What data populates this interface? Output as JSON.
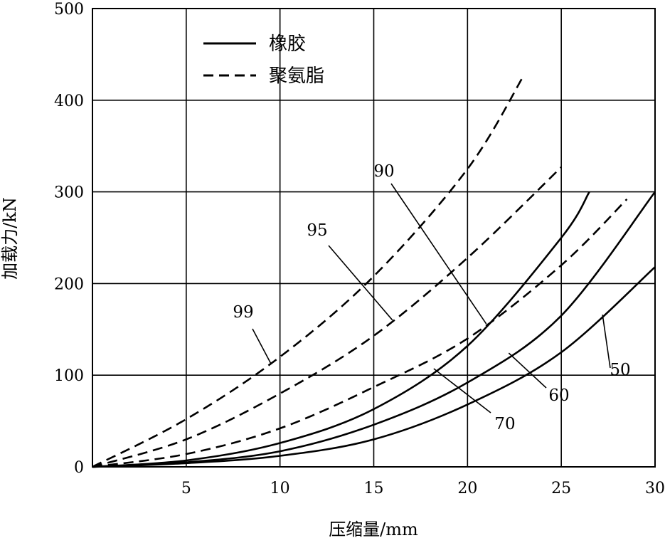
{
  "chart_data": {
    "type": "line",
    "title": "",
    "xlabel": "压缩量/mm",
    "ylabel": "加载力/kN",
    "xlim": [
      0,
      30
    ],
    "ylim": [
      0,
      500
    ],
    "x_ticks": [
      5,
      10,
      15,
      20,
      25,
      30
    ],
    "y_ticks": [
      0,
      100,
      200,
      300,
      400,
      500
    ],
    "grid": true,
    "legend": [
      {
        "label": "橡胶",
        "style": "solid"
      },
      {
        "label": "聚氨脂",
        "style": "dashed"
      }
    ],
    "series": [
      {
        "name": "50",
        "material": "橡胶",
        "style": "solid",
        "x": [
          0,
          5,
          10,
          15,
          20,
          25,
          30
        ],
        "y": [
          0,
          4,
          12,
          30,
          68,
          125,
          218
        ]
      },
      {
        "name": "60",
        "material": "橡胶",
        "style": "solid",
        "x": [
          0,
          5,
          10,
          15,
          20,
          25,
          30
        ],
        "y": [
          0,
          5,
          17,
          46,
          92,
          165,
          300
        ]
      },
      {
        "name": "70",
        "material": "橡胶",
        "style": "solid",
        "x": [
          0,
          5,
          10,
          15,
          20,
          25,
          26.5
        ],
        "y": [
          0,
          7,
          26,
          63,
          132,
          250,
          300
        ]
      },
      {
        "name": "90",
        "material": "聚氨脂",
        "style": "dashed",
        "x": [
          0,
          5,
          10,
          15,
          20,
          25,
          28.5
        ],
        "y": [
          0,
          14,
          42,
          87,
          140,
          220,
          292
        ]
      },
      {
        "name": "95",
        "material": "聚氨脂",
        "style": "dashed",
        "x": [
          0,
          5,
          10,
          15,
          20,
          25
        ],
        "y": [
          0,
          30,
          80,
          143,
          228,
          327
        ]
      },
      {
        "name": "99",
        "material": "聚氨脂",
        "style": "dashed",
        "x": [
          0,
          5,
          10,
          15,
          20,
          23
        ],
        "y": [
          0,
          52,
          120,
          208,
          325,
          427
        ]
      }
    ],
    "curve_labels": [
      {
        "text": "50",
        "series": "50"
      },
      {
        "text": "60",
        "series": "60"
      },
      {
        "text": "70",
        "series": "70"
      },
      {
        "text": "90",
        "series": "90"
      },
      {
        "text": "95",
        "series": "95"
      },
      {
        "text": "99",
        "series": "99"
      }
    ]
  }
}
